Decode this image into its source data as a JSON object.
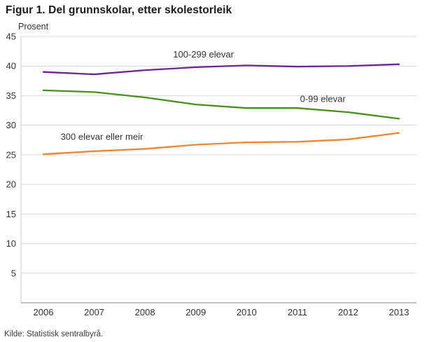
{
  "header": {
    "title": "Figur 1. Del grunnskolar, etter skolestorleik"
  },
  "footer": {
    "source": "Kilde: Statistisk sentralbyrå."
  },
  "chart_data": {
    "type": "line",
    "title": "Figur 1. Del grunnskolar, etter skolestorleik",
    "xlabel": "",
    "ylabel": "Prosent",
    "x": [
      2006,
      2007,
      2008,
      2009,
      2010,
      2011,
      2012,
      2013
    ],
    "ylim": [
      0,
      45
    ],
    "yticks": [
      5,
      10,
      15,
      20,
      25,
      30,
      35,
      40,
      45
    ],
    "grid": "horizontal",
    "legend_position": "inline-annotations",
    "axis_colors": {
      "gridline": "#d9d9d9",
      "x_axis_line": "#9a9a9a",
      "y_axis_line": "#c9c9c9",
      "tick_text": "#333333"
    },
    "series": [
      {
        "name": "100-299 elevar",
        "color": "#6e2594",
        "values": [
          39.0,
          38.6,
          39.3,
          39.8,
          40.1,
          39.9,
          40.0,
          40.3
        ]
      },
      {
        "name": "0-99 elevar",
        "color": "#478f1f",
        "values": [
          35.9,
          35.6,
          34.7,
          33.5,
          32.9,
          32.9,
          32.2,
          31.1
        ]
      },
      {
        "name": "300 elevar eller meir",
        "color": "#ef8633",
        "values": [
          25.1,
          25.6,
          26.0,
          26.7,
          27.1,
          27.2,
          27.6,
          28.7
        ]
      }
    ],
    "annotations": [
      {
        "series": 0,
        "text": "100-299 elevar",
        "x": 2009.15,
        "y": 41.9
      },
      {
        "series": 1,
        "text": "0-99 elevar",
        "x": 2011.5,
        "y": 34.4
      },
      {
        "series": 2,
        "text": "300 elevar eller meir",
        "x": 2007.15,
        "y": 28.0
      }
    ]
  }
}
